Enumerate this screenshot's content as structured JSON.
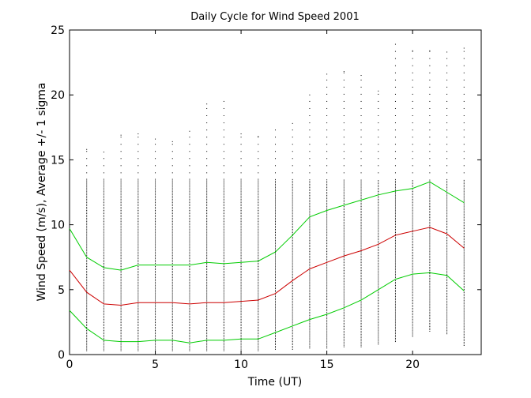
{
  "chart_data": {
    "type": "line",
    "title": "Daily Cycle for Wind Speed 2001",
    "xlabel": "Time (UT)",
    "ylabel": "Wind Speed (m/s), Average +/- 1 sigma",
    "xlim": [
      0,
      24
    ],
    "ylim": [
      0,
      25
    ],
    "xticks": [
      0,
      5,
      10,
      15,
      20
    ],
    "yticks": [
      0,
      5,
      10,
      15,
      20,
      25
    ],
    "grid": false,
    "x": [
      0,
      1,
      2,
      3,
      4,
      5,
      6,
      7,
      8,
      9,
      10,
      11,
      12,
      13,
      14,
      15,
      16,
      17,
      18,
      19,
      20,
      21,
      22,
      23
    ],
    "series": [
      {
        "color": "#00cc00",
        "values": [
          9.7,
          7.5,
          6.7,
          6.5,
          6.9,
          6.9,
          6.9,
          6.9,
          7.1,
          7.0,
          7.1,
          7.2,
          7.9,
          9.2,
          10.6,
          11.1,
          11.5,
          11.9,
          12.3,
          12.6,
          12.8,
          13.3,
          12.5,
          11.7
        ]
      },
      {
        "color": "#cc0000",
        "values": [
          6.5,
          4.8,
          3.9,
          3.8,
          4.0,
          4.0,
          4.0,
          3.9,
          4.0,
          4.0,
          4.1,
          4.2,
          4.7,
          5.7,
          6.6,
          7.1,
          7.6,
          8.0,
          8.5,
          9.2,
          9.5,
          9.8,
          9.3,
          8.2
        ]
      },
      {
        "color": "#00cc00",
        "values": [
          3.4,
          2.0,
          1.1,
          1.0,
          1.0,
          1.1,
          1.1,
          0.9,
          1.1,
          1.1,
          1.2,
          1.2,
          1.7,
          2.2,
          2.7,
          3.1,
          3.6,
          4.2,
          5.0,
          5.8,
          6.2,
          6.3,
          6.1,
          4.9
        ]
      }
    ],
    "scatter": {
      "color": "#000000",
      "x": [
        1,
        2,
        3,
        4,
        5,
        6,
        7,
        8,
        9,
        10,
        11,
        12,
        13,
        14,
        15,
        16,
        17,
        18,
        19,
        20,
        21,
        22,
        23
      ],
      "ymin": [
        0.3,
        0.3,
        0.3,
        0.3,
        0.3,
        0.3,
        0.3,
        0.3,
        0.3,
        0.3,
        0.3,
        0.4,
        0.4,
        0.5,
        0.5,
        0.6,
        0.6,
        0.8,
        1.0,
        1.4,
        1.8,
        1.6,
        0.7
      ],
      "ymax": [
        15.8,
        15.6,
        16.9,
        17.0,
        16.6,
        16.4,
        17.2,
        19.3,
        19.5,
        17.0,
        16.8,
        17.3,
        17.8,
        20.0,
        21.6,
        21.8,
        21.5,
        20.3,
        23.9,
        23.4,
        23.4,
        23.3,
        23.6
      ]
    }
  }
}
